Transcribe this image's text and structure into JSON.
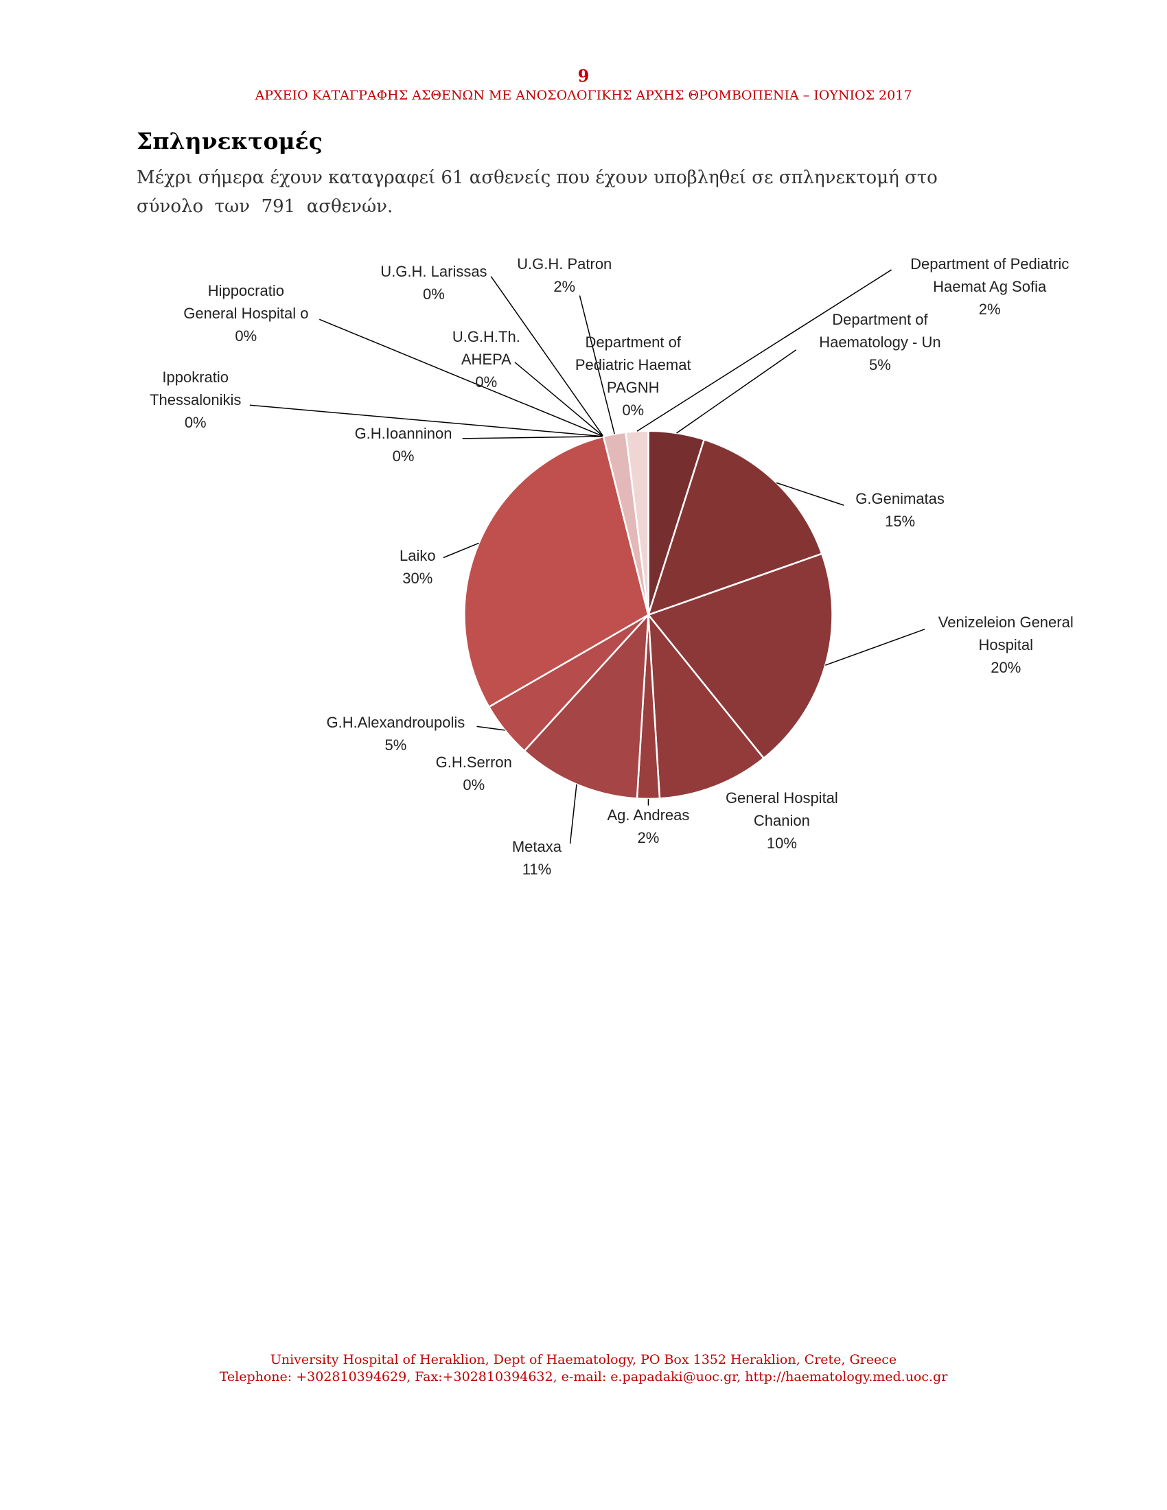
{
  "header": {
    "page_number": "9",
    "running_title": "ΑΡΧΕΙΟ ΚΑΤΑΓΡΑΦΗΣ ΑΣΘΕΝΩΝ ΜΕ ΑΝΟΣΟΛΟΓΙΚΗΣ ΑΡΧΗΣ ΘΡΟΜΒΟΠΕΝΙΑ – ΙΟΥΝΙΟΣ 2017"
  },
  "section": {
    "title": "Σπληνεκτομές",
    "text_lines": [
      "Μέχρι σήμερα έχουν καταγραφεί 61 ασθενείς που έχουν υποβληθεί σε σπληνεκτομή στο",
      "σύνολο  των  791  ασθενών."
    ]
  },
  "chart_data": {
    "type": "pie",
    "categories": [
      "Department of\nHaematology - Un",
      "G.Genimatas",
      "Venizeleion General\nHospital",
      "General Hospital\nChanion",
      "Ag. Andreas",
      "Metaxa",
      "G.H.Serron",
      "G.H.Alexandroupolis",
      "Laiko",
      "G.H.Ioanninon",
      "Ippokratio\nThessalonikis",
      "Hippocratio\nGeneral Hospital o",
      "U.G.H.Th.\nAHEPA",
      "U.G.H. Larissas",
      "U.G.H. Patron",
      "Department of\nPediatric Haemat\nPAGNH",
      "Department of Pediatric\nHaemat Ag Sofia"
    ],
    "values": [
      5,
      15,
      20,
      10,
      2,
      11,
      0,
      5,
      30,
      0,
      0,
      0,
      0,
      0,
      2,
      0,
      2
    ],
    "value_labels": [
      "5%",
      "15%",
      "20%",
      "10%",
      "2%",
      "11%",
      "0%",
      "5%",
      "30%",
      "0%",
      "0%",
      "0%",
      "0%",
      "0%",
      "2%",
      "0%",
      "2%"
    ],
    "colors": [
      "#772e2e",
      "#853434",
      "#8c3838",
      "#933a3a",
      "#9b3e3e",
      "#a54545",
      "#ad4848",
      "#b64c4c",
      "#c0504d",
      "#c65f5c",
      "#cb6b69",
      "#d07876",
      "#d58785",
      "#da9896",
      "#e2b9b8",
      "#e8c8c7",
      "#efd6d5"
    ]
  }
}
